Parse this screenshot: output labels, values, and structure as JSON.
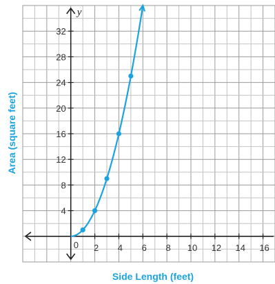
{
  "chart_data": {
    "type": "line",
    "title": "",
    "xlabel": "Side Length (feet)",
    "ylabel": "Area (square feet)",
    "y_axis_var": "y",
    "origin_label": "0",
    "xlim": [
      -4,
      17
    ],
    "ylim": [
      -4,
      36
    ],
    "x_ticks": [
      2,
      4,
      6,
      8,
      10,
      12,
      14,
      16
    ],
    "y_ticks": [
      4,
      8,
      12,
      16,
      20,
      24,
      28,
      32
    ],
    "grid": true,
    "series": [
      {
        "points": [
          [
            0,
            0
          ],
          [
            1,
            1
          ],
          [
            2,
            4
          ],
          [
            3,
            9
          ],
          [
            4,
            16
          ],
          [
            5,
            25
          ]
        ],
        "curve_end_x": 6,
        "color": "#1ba3e0"
      }
    ],
    "label_color": "#1ba3e0"
  }
}
